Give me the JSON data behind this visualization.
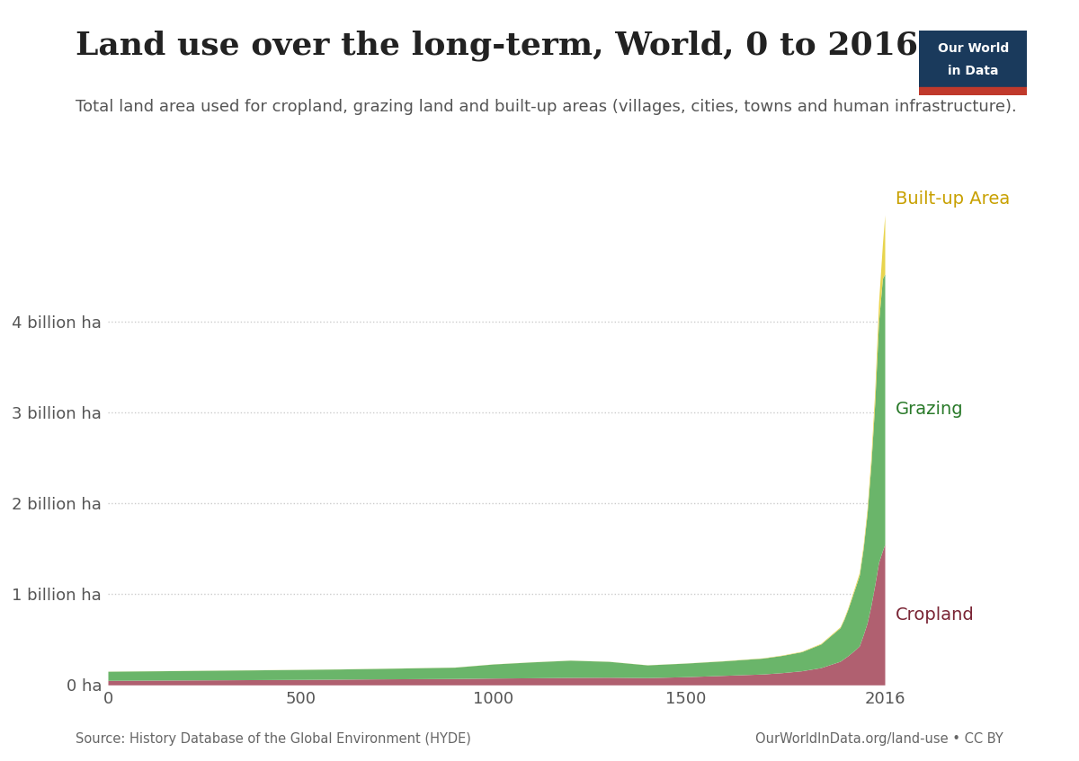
{
  "title": "Land use over the long-term, World, 0 to 2016",
  "subtitle": "Total land area used for cropland, grazing land and built-up areas (villages, cities, towns and human infrastructure).",
  "source_left": "Source: History Database of the Global Environment (HYDE)",
  "source_right": "OurWorldInData.org/land-use • CC BY",
  "background_color": "#ffffff",
  "plot_bg_color": "#ffffff",
  "grid_color": "#cccccc",
  "cropland_color": "#b06070",
  "grazing_color": "#6ab56a",
  "builtup_color": "#e8d44d",
  "cropland_label": "Cropland",
  "grazing_label": "Grazing",
  "builtup_label": "Built-up Area",
  "cropland_label_color": "#7a2535",
  "grazing_label_color": "#2a7a2a",
  "builtup_label_color": "#c8a000",
  "title_fontsize": 26,
  "subtitle_fontsize": 13,
  "label_fontsize": 14,
  "tick_fontsize": 13,
  "ytick_labels": [
    "0 ha",
    "1 billion ha",
    "2 billion ha",
    "3 billion ha",
    "4 billion ha"
  ],
  "ytick_values": [
    0,
    1000000000,
    2000000000,
    3000000000,
    4000000000
  ],
  "ylim": [
    0,
    5200000000
  ],
  "years": [
    0,
    100,
    200,
    300,
    400,
    500,
    600,
    700,
    800,
    900,
    1000,
    1100,
    1200,
    1300,
    1400,
    1500,
    1600,
    1700,
    1750,
    1800,
    1850,
    1900,
    1910,
    1920,
    1930,
    1940,
    1950,
    1960,
    1970,
    1980,
    1990,
    2000,
    2010,
    2016
  ],
  "cropland_values": [
    50000000,
    52000000,
    54000000,
    56000000,
    58000000,
    60000000,
    63000000,
    66000000,
    68000000,
    70000000,
    75000000,
    78000000,
    82000000,
    84000000,
    80000000,
    90000000,
    105000000,
    120000000,
    135000000,
    155000000,
    190000000,
    260000000,
    290000000,
    320000000,
    355000000,
    390000000,
    430000000,
    550000000,
    680000000,
    870000000,
    1100000000,
    1350000000,
    1480000000,
    1550000000
  ],
  "grazing_values": [
    100000000,
    102000000,
    104000000,
    106000000,
    108000000,
    110000000,
    112000000,
    115000000,
    120000000,
    125000000,
    155000000,
    175000000,
    190000000,
    175000000,
    140000000,
    150000000,
    160000000,
    175000000,
    190000000,
    210000000,
    260000000,
    370000000,
    430000000,
    510000000,
    600000000,
    690000000,
    780000000,
    950000000,
    1200000000,
    1550000000,
    2000000000,
    2650000000,
    3000000000,
    2980000000
  ],
  "builtup_values": [
    1000000,
    1000000,
    1000000,
    1000000,
    1000000,
    1000000,
    1000000,
    1000000,
    1000000,
    1000000,
    1000000,
    1000000,
    1000000,
    1000000,
    1000000,
    1000000,
    2000000,
    3000000,
    4000000,
    5000000,
    7000000,
    10000000,
    13000000,
    16000000,
    20000000,
    25000000,
    30000000,
    40000000,
    55000000,
    85000000,
    130000000,
    220000000,
    380000000,
    650000000
  ],
  "logo_text_line1": "Our World",
  "logo_text_line2": "in Data",
  "logo_bg_color": "#1a3a5c",
  "logo_text_color": "#ffffff",
  "logo_red_color": "#c0392b"
}
